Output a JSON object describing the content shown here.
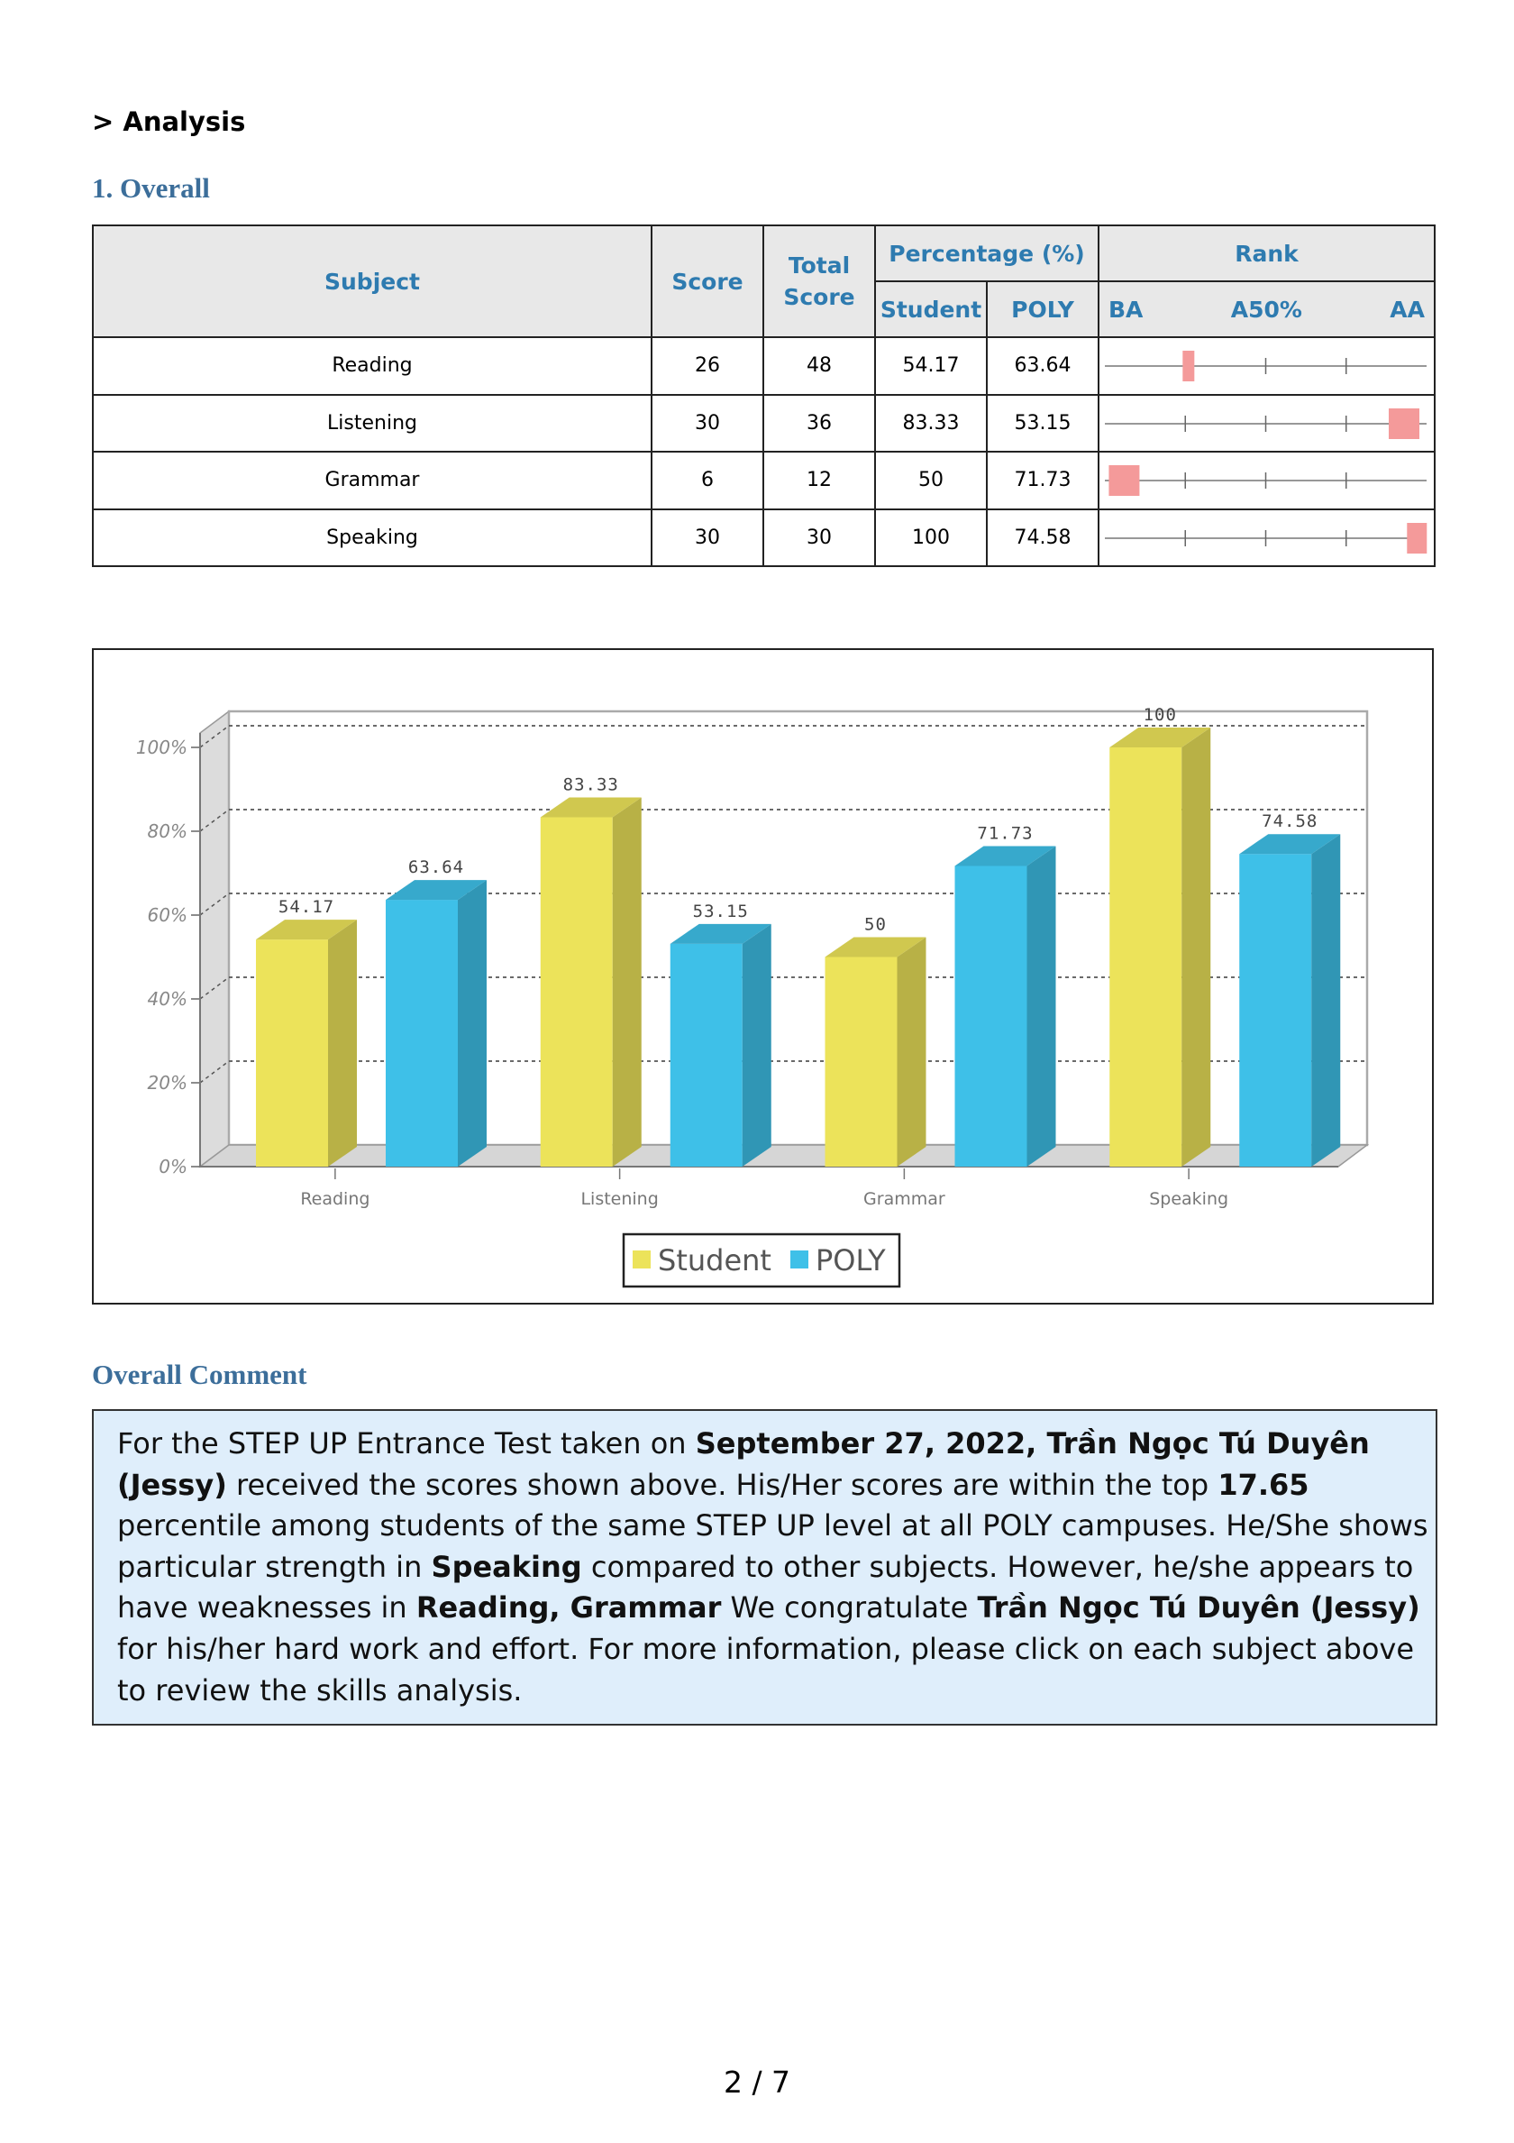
{
  "header": {
    "section_title": "> Analysis"
  },
  "overall": {
    "title": "1. Overall",
    "table": {
      "headers": {
        "subject": "Subject",
        "score": "Score",
        "total_line1": "Total",
        "total_line2": "Score",
        "percentage": "Percentage (%)",
        "student": "Student",
        "poly": "POLY",
        "rank": "Rank",
        "rank_ba": "BA",
        "rank_a50": "A50%",
        "rank_aa": "AA"
      },
      "rows": [
        {
          "subject": "Reading",
          "score": "26",
          "total": "48",
          "student": "54.17",
          "poly": "63.64",
          "rank_position": 0.26
        },
        {
          "subject": "Listening",
          "score": "30",
          "total": "36",
          "student": "83.33",
          "poly": "53.15",
          "rank_position": 0.93
        },
        {
          "subject": "Grammar",
          "score": "6",
          "total": "12",
          "student": "50",
          "poly": "71.73",
          "rank_position": 0.06
        },
        {
          "subject": "Speaking",
          "score": "30",
          "total": "30",
          "student": "100",
          "poly": "74.58",
          "rank_position": 0.97
        }
      ],
      "rank_marker_color": "#f49a9a"
    }
  },
  "chart_data": {
    "type": "bar",
    "categories": [
      "Reading",
      "Listening",
      "Grammar",
      "Speaking"
    ],
    "series": [
      {
        "name": "Student",
        "values": [
          54.17,
          83.33,
          50,
          100
        ],
        "color": "#ece35a"
      },
      {
        "name": "POLY",
        "values": [
          63.64,
          53.15,
          71.73,
          74.58
        ],
        "color": "#3ec0e8"
      }
    ],
    "data_labels": [
      [
        "54.17",
        "83.33",
        "50",
        "100"
      ],
      [
        "63.64",
        "53.15",
        "71.73",
        "74.58"
      ]
    ],
    "yticks": [
      "0%",
      "20%",
      "40%",
      "60%",
      "80%",
      "100%"
    ],
    "ylim": [
      0,
      100
    ],
    "grid": true,
    "legend_position": "bottom",
    "style": "3d"
  },
  "comment": {
    "title": "Overall Comment",
    "p1": "For the STEP UP Entrance Test taken on ",
    "date_name": "September 27, 2022, Trần Ngọc Tú Duyên (Jessy)",
    "p2": " received the scores shown above. His/Her scores are within the top ",
    "percentile": "17.65",
    "p3": " percentile among students of the same STEP UP level at all POLY campuses. He/She shows particular strength in ",
    "strength": "Speaking",
    "p4": " compared to other subjects. However, he/she appears to have weaknesses in ",
    "weakness": "Reading, Grammar",
    "p5": " We congratulate ",
    "name": "Trần Ngọc Tú Duyên (Jessy)",
    "p6": "  for his/her hard work and effort. For more information, please click on each subject above to review the skills analysis."
  },
  "footer": {
    "page_number": "2 / 7"
  }
}
